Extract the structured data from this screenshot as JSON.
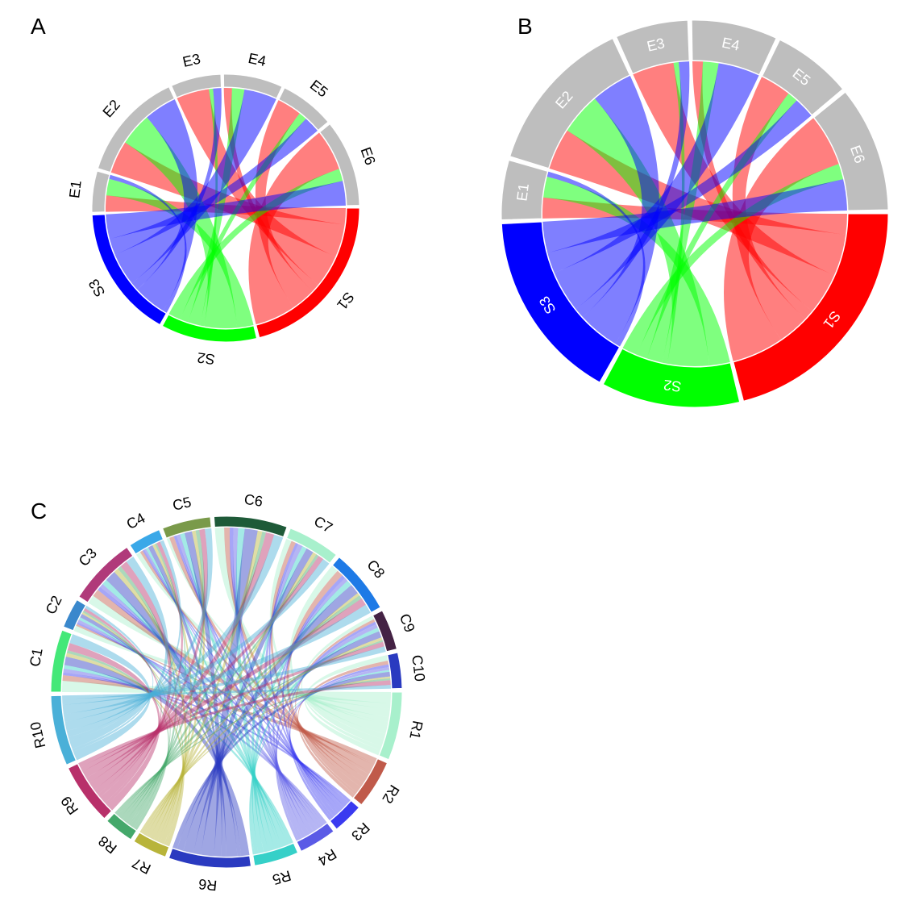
{
  "panels": [
    {
      "letter": "A"
    },
    {
      "letter": "B"
    },
    {
      "letter": "C"
    }
  ],
  "chart_data": [
    {
      "type": "chord",
      "panel": "A",
      "label_position": "outside",
      "sectors": [
        {
          "name": "S1",
          "color": "#ff0000"
        },
        {
          "name": "S2",
          "color": "#00ff00"
        },
        {
          "name": "S3",
          "color": "#0000ff"
        },
        {
          "name": "E1",
          "color": "#bebebe"
        },
        {
          "name": "E2",
          "color": "#bebebe"
        },
        {
          "name": "E3",
          "color": "#bebebe"
        },
        {
          "name": "E4",
          "color": "#bebebe"
        },
        {
          "name": "E5",
          "color": "#bebebe"
        },
        {
          "name": "E6",
          "color": "#bebebe"
        }
      ],
      "links": [
        {
          "from": "S1",
          "to": "E1",
          "value": 2
        },
        {
          "from": "S1",
          "to": "E2",
          "value": 4
        },
        {
          "from": "S1",
          "to": "E3",
          "value": 4
        },
        {
          "from": "S1",
          "to": "E4",
          "value": 1
        },
        {
          "from": "S1",
          "to": "E5",
          "value": 3
        },
        {
          "from": "S1",
          "to": "E6",
          "value": 5
        },
        {
          "from": "S2",
          "to": "E1",
          "value": 2
        },
        {
          "from": "S2",
          "to": "E2",
          "value": 4
        },
        {
          "from": "S2",
          "to": "E3",
          "value": 0.5
        },
        {
          "from": "S2",
          "to": "E4",
          "value": 1.5
        },
        {
          "from": "S2",
          "to": "E5",
          "value": 1
        },
        {
          "from": "S2",
          "to": "E6",
          "value": 1.5
        },
        {
          "from": "S3",
          "to": "E1",
          "value": 0.5
        },
        {
          "from": "S3",
          "to": "E2",
          "value": 4
        },
        {
          "from": "S3",
          "to": "E3",
          "value": 1
        },
        {
          "from": "S3",
          "to": "E4",
          "value": 4
        },
        {
          "from": "S3",
          "to": "E5",
          "value": 2
        },
        {
          "from": "S3",
          "to": "E6",
          "value": 3
        }
      ]
    },
    {
      "type": "chord",
      "panel": "B",
      "label_position": "inside",
      "sectors": [
        {
          "name": "S1",
          "color": "#ff0000"
        },
        {
          "name": "S2",
          "color": "#00ff00"
        },
        {
          "name": "S3",
          "color": "#0000ff"
        },
        {
          "name": "E1",
          "color": "#bebebe"
        },
        {
          "name": "E2",
          "color": "#bebebe"
        },
        {
          "name": "E3",
          "color": "#bebebe"
        },
        {
          "name": "E4",
          "color": "#bebebe"
        },
        {
          "name": "E5",
          "color": "#bebebe"
        },
        {
          "name": "E6",
          "color": "#bebebe"
        }
      ],
      "links": [
        {
          "from": "S1",
          "to": "E1",
          "value": 2
        },
        {
          "from": "S1",
          "to": "E2",
          "value": 4
        },
        {
          "from": "S1",
          "to": "E3",
          "value": 4
        },
        {
          "from": "S1",
          "to": "E4",
          "value": 1
        },
        {
          "from": "S1",
          "to": "E5",
          "value": 3
        },
        {
          "from": "S1",
          "to": "E6",
          "value": 5
        },
        {
          "from": "S2",
          "to": "E1",
          "value": 2
        },
        {
          "from": "S2",
          "to": "E2",
          "value": 4
        },
        {
          "from": "S2",
          "to": "E3",
          "value": 0.5
        },
        {
          "from": "S2",
          "to": "E4",
          "value": 1.5
        },
        {
          "from": "S2",
          "to": "E5",
          "value": 1
        },
        {
          "from": "S2",
          "to": "E6",
          "value": 1.5
        },
        {
          "from": "S3",
          "to": "E1",
          "value": 0.5
        },
        {
          "from": "S3",
          "to": "E2",
          "value": 4
        },
        {
          "from": "S3",
          "to": "E3",
          "value": 1
        },
        {
          "from": "S3",
          "to": "E4",
          "value": 4
        },
        {
          "from": "S3",
          "to": "E5",
          "value": 2
        },
        {
          "from": "S3",
          "to": "E6",
          "value": 3
        }
      ]
    },
    {
      "type": "chord",
      "panel": "C",
      "label_position": "outside",
      "sectors": [
        {
          "name": "R1",
          "color": "#a8f0cc"
        },
        {
          "name": "R2",
          "color": "#c05a4a"
        },
        {
          "name": "R3",
          "color": "#3a3af0"
        },
        {
          "name": "R4",
          "color": "#5a5ae6"
        },
        {
          "name": "R5",
          "color": "#36d0c8"
        },
        {
          "name": "R6",
          "color": "#2a3ac0"
        },
        {
          "name": "R7",
          "color": "#b8b43a"
        },
        {
          "name": "R8",
          "color": "#44a86a"
        },
        {
          "name": "R9",
          "color": "#b8306a"
        },
        {
          "name": "R10",
          "color": "#4ab0d8"
        },
        {
          "name": "C1",
          "color": "#44e878"
        },
        {
          "name": "C2",
          "color": "#3a88cc"
        },
        {
          "name": "C3",
          "color": "#b03a7a"
        },
        {
          "name": "C4",
          "color": "#3aa8e8"
        },
        {
          "name": "C5",
          "color": "#7a9a4a"
        },
        {
          "name": "C6",
          "color": "#1e5a38"
        },
        {
          "name": "C7",
          "color": "#a8f0cc"
        },
        {
          "name": "C8",
          "color": "#1e7ae6"
        },
        {
          "name": "C9",
          "color": "#442244"
        },
        {
          "name": "C10",
          "color": "#2a3ac0"
        }
      ],
      "rows": [
        "R1",
        "R2",
        "R3",
        "R4",
        "R5",
        "R6",
        "R7",
        "R8",
        "R9",
        "R10"
      ],
      "cols": [
        "C1",
        "C2",
        "C3",
        "C4",
        "C5",
        "C6",
        "C7",
        "C8",
        "C9",
        "C10"
      ],
      "matrix": [
        [
          1.2,
          0.6,
          0.9,
          0.5,
          0.3,
          1.0,
          0.6,
          0.8,
          0.4,
          0.6
        ],
        [
          0.6,
          0.2,
          0.8,
          0.3,
          0.5,
          0.6,
          0.5,
          0.7,
          0.3,
          0.4
        ],
        [
          0.3,
          0.2,
          0.4,
          0.2,
          0.3,
          0.4,
          0.3,
          0.4,
          0.3,
          0.3
        ],
        [
          0.4,
          0.3,
          0.4,
          0.2,
          0.4,
          0.5,
          0.5,
          0.4,
          0.4,
          0.3
        ],
        [
          0.4,
          0.3,
          0.6,
          0.3,
          0.5,
          0.7,
          0.5,
          0.6,
          0.4,
          0.2
        ],
        [
          0.9,
          0.4,
          1.2,
          0.5,
          0.8,
          1.4,
          0.8,
          1.1,
          0.7,
          0.5
        ],
        [
          0.4,
          0.2,
          0.5,
          0.3,
          0.4,
          0.5,
          0.4,
          0.3,
          0.3,
          0.2
        ],
        [
          0.3,
          0.2,
          0.4,
          0.2,
          0.4,
          0.4,
          0.3,
          0.4,
          0.2,
          0.2
        ],
        [
          0.8,
          0.3,
          0.8,
          0.4,
          0.6,
          0.9,
          0.6,
          0.8,
          0.5,
          0.5
        ],
        [
          1.0,
          0.3,
          0.9,
          0.4,
          0.7,
          1.0,
          0.8,
          1.0,
          0.6,
          0.4
        ]
      ]
    }
  ]
}
